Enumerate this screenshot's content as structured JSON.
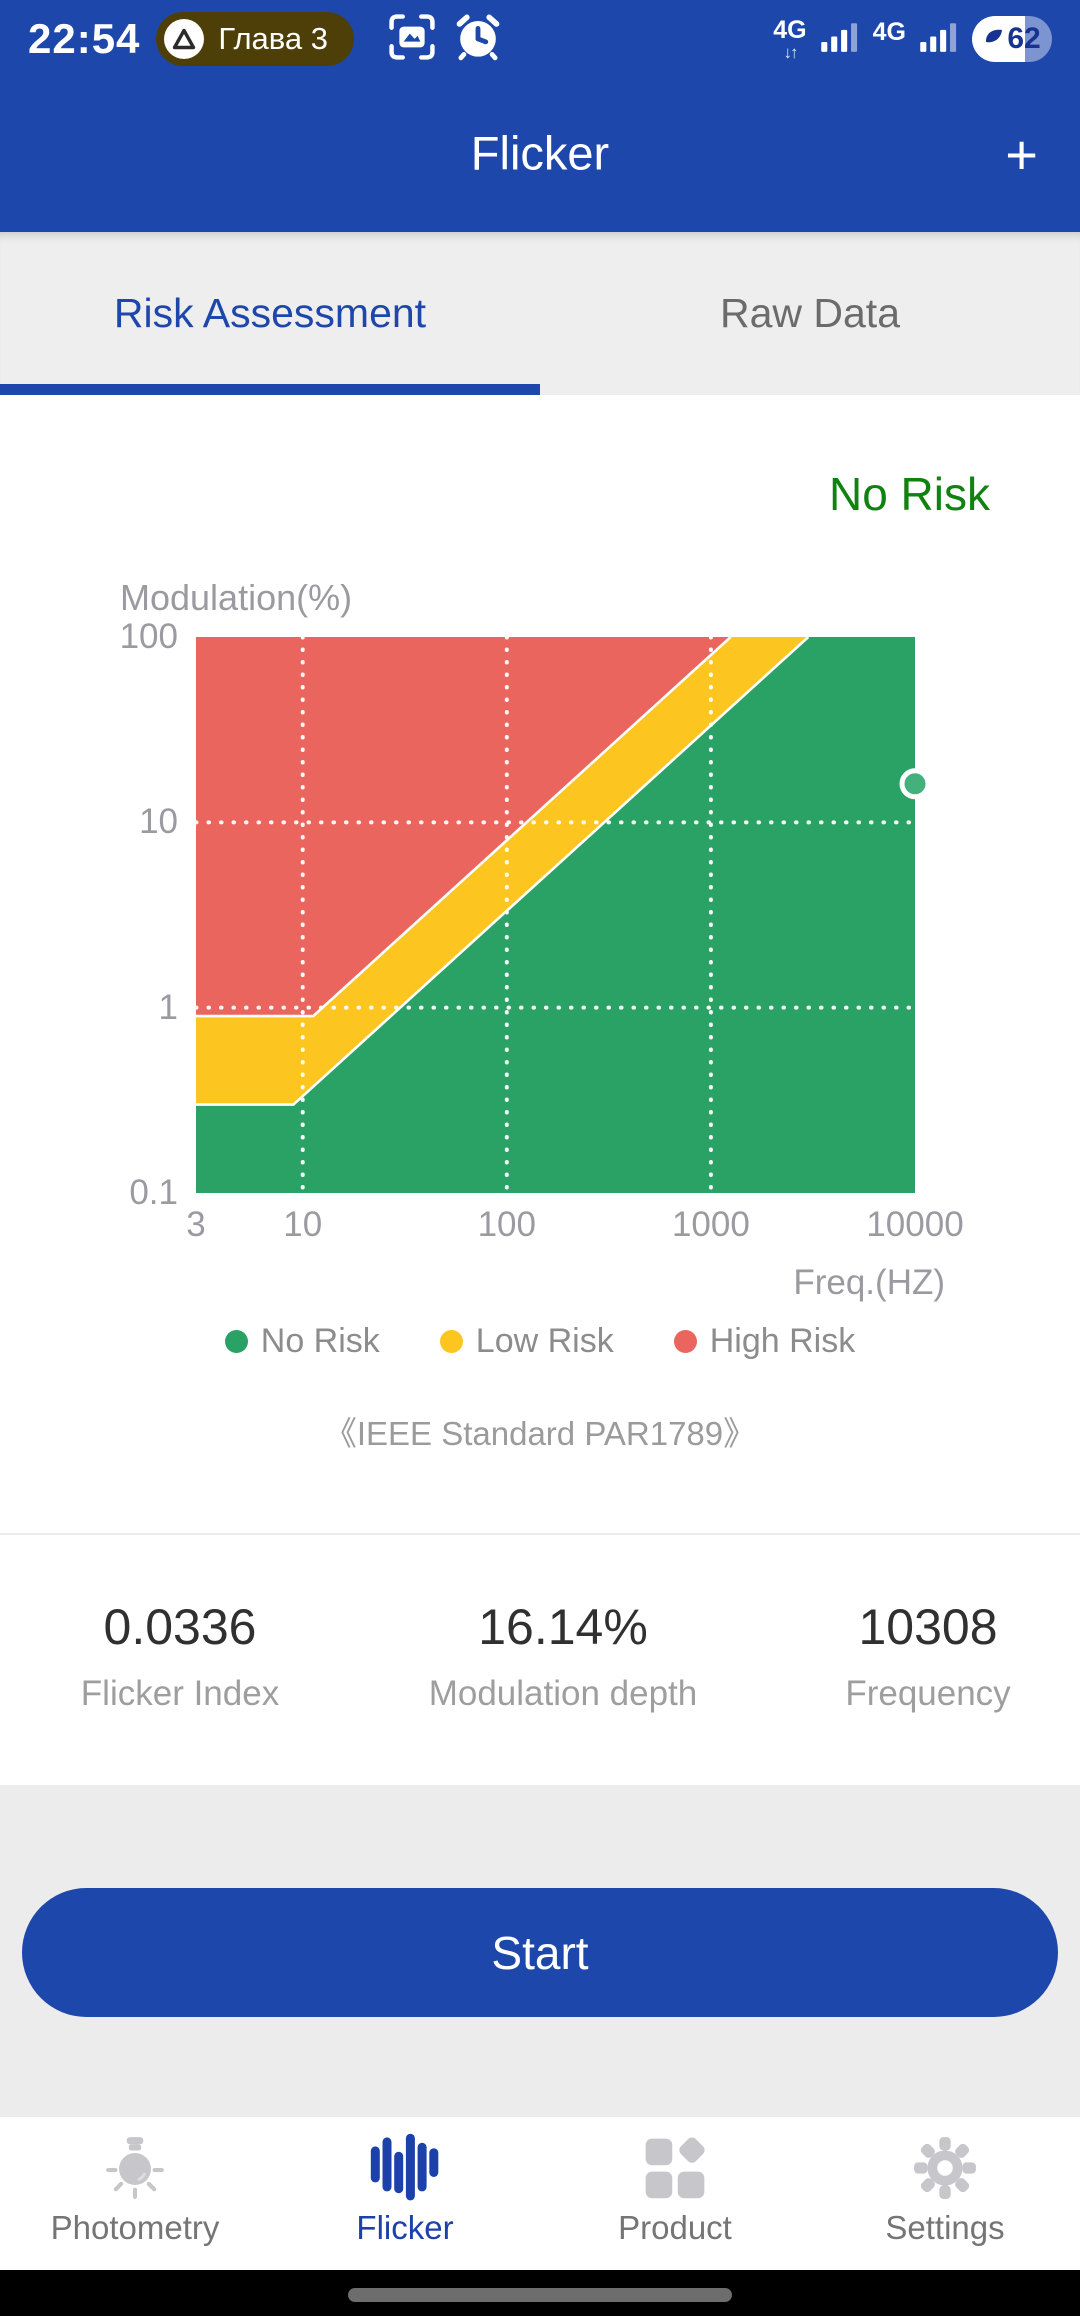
{
  "status_bar": {
    "time": "22:54",
    "notification_label": "Глава 3",
    "network_left": "4G",
    "network_arrows": "↓↑",
    "network_right": "4G",
    "battery_level": "62"
  },
  "header": {
    "title": "Flicker",
    "add_label": "+"
  },
  "tabs": [
    {
      "label": "Risk Assessment",
      "active": true
    },
    {
      "label": "Raw Data",
      "active": false
    }
  ],
  "risk_status": "No Risk",
  "chart_data": {
    "type": "area",
    "title": "",
    "xlabel": "Freq.(HZ)",
    "ylabel": "Modulation(%)",
    "x_scale": "log",
    "y_scale": "log",
    "xlim": [
      3,
      10000
    ],
    "ylim": [
      0.1,
      100
    ],
    "x_ticks": [
      "3",
      "10",
      "100",
      "1000",
      "10000"
    ],
    "y_ticks": [
      "100",
      "10",
      "1",
      "0.1"
    ],
    "x_gridlines": [
      10,
      100,
      1000
    ],
    "y_gridlines": [
      10,
      1
    ],
    "grid_style": "white dotted",
    "regions": {
      "no_risk_boundary": [
        [
          3,
          0.3
        ],
        [
          9,
          0.3
        ],
        [
          3000,
          100
        ]
      ],
      "high_risk_boundary": [
        [
          3,
          0.9
        ],
        [
          11.25,
          0.9
        ],
        [
          1250,
          100
        ]
      ]
    },
    "region_colors": {
      "no_risk": "#2ba265",
      "low_risk": "#fcc520",
      "high_risk": "#e9655e"
    },
    "series": [
      {
        "name": "measurement",
        "type": "scatter",
        "points": [
          {
            "x": 10308,
            "y": 16.14
          }
        ],
        "point_color": "#44b17d",
        "point_stroke": "#ffffff"
      }
    ],
    "legend_position": "bottom"
  },
  "legend": [
    {
      "label": "No Risk",
      "color": "#2ba265"
    },
    {
      "label": "Low Risk",
      "color": "#fcc520"
    },
    {
      "label": "High Risk",
      "color": "#e9655e"
    }
  ],
  "standard_note": "《IEEE Standard PAR1789》",
  "stats": [
    {
      "value": "0.0336",
      "label": "Flicker Index"
    },
    {
      "value": "16.14%",
      "label": "Modulation depth"
    },
    {
      "value": "10308",
      "label": "Frequency"
    }
  ],
  "start_button_label": "Start",
  "bottom_nav": [
    {
      "label": "Photometry",
      "icon": "bulb-icon",
      "active": false
    },
    {
      "label": "Flicker",
      "icon": "waveform-icon",
      "active": true
    },
    {
      "label": "Product",
      "icon": "grid-icon",
      "active": false
    },
    {
      "label": "Settings",
      "icon": "gear-icon",
      "active": false
    }
  ],
  "colors": {
    "primary_blue": "#1e47ac",
    "risk_text_green": "#0f820f",
    "nav_icon_gray": "#c7c7cb",
    "nav_active_blue": "#1c41ab"
  }
}
